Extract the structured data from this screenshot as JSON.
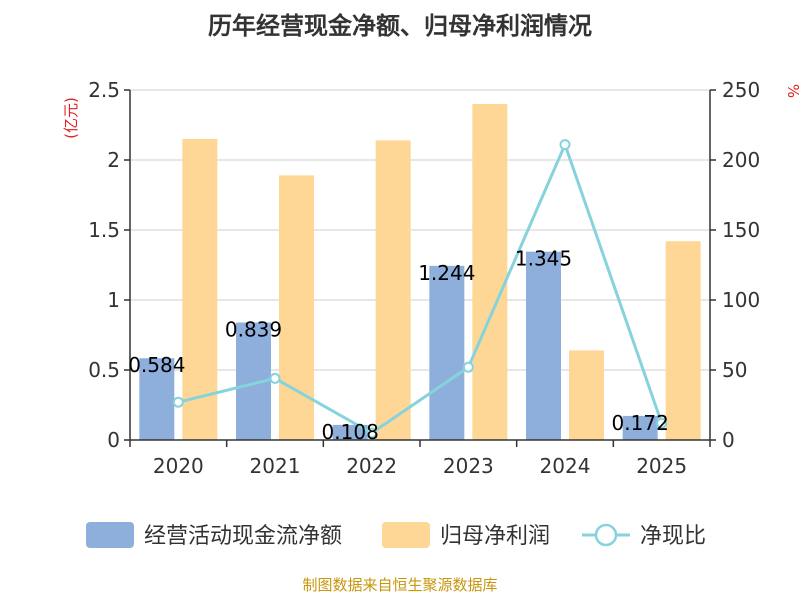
{
  "chart_data": {
    "type": "bar",
    "title": "历年经营现金净额、归母净利润情况",
    "categories": [
      "2020",
      "2021",
      "2022",
      "2023",
      "2024",
      "2025"
    ],
    "series": [
      {
        "name": "经营活动现金流净额",
        "kind": "bar",
        "axis": "left",
        "color": "#8eaedb",
        "values": [
          0.584,
          0.839,
          0.108,
          1.244,
          1.345,
          0.172
        ]
      },
      {
        "name": "归母净利润",
        "kind": "bar",
        "axis": "left",
        "color": "#fed796",
        "values": [
          2.15,
          1.89,
          2.14,
          2.4,
          0.64,
          1.42
        ]
      },
      {
        "name": "净现比",
        "kind": "line",
        "axis": "right",
        "color": "#86d3dc",
        "values": [
          27,
          44,
          5,
          52,
          211,
          12
        ]
      }
    ],
    "data_labels": [
      "0.584",
      "0.839",
      "0.108",
      "1.244",
      "1.345",
      "0.172"
    ],
    "y_left": {
      "unit": "(亿元)",
      "ylim": [
        0,
        2.5
      ],
      "ticks": [
        "0",
        "0.5",
        "1",
        "1.5",
        "2",
        "2.5"
      ]
    },
    "y_right": {
      "unit": "%",
      "ylim": [
        0,
        250
      ],
      "ticks": [
        "0",
        "50",
        "100",
        "150",
        "200",
        "250"
      ]
    },
    "unit_color": "#e02020",
    "source_color": "#c8960c",
    "grid": true,
    "legend_position": "bottom"
  },
  "source": "制图数据来自恒生聚源数据库"
}
